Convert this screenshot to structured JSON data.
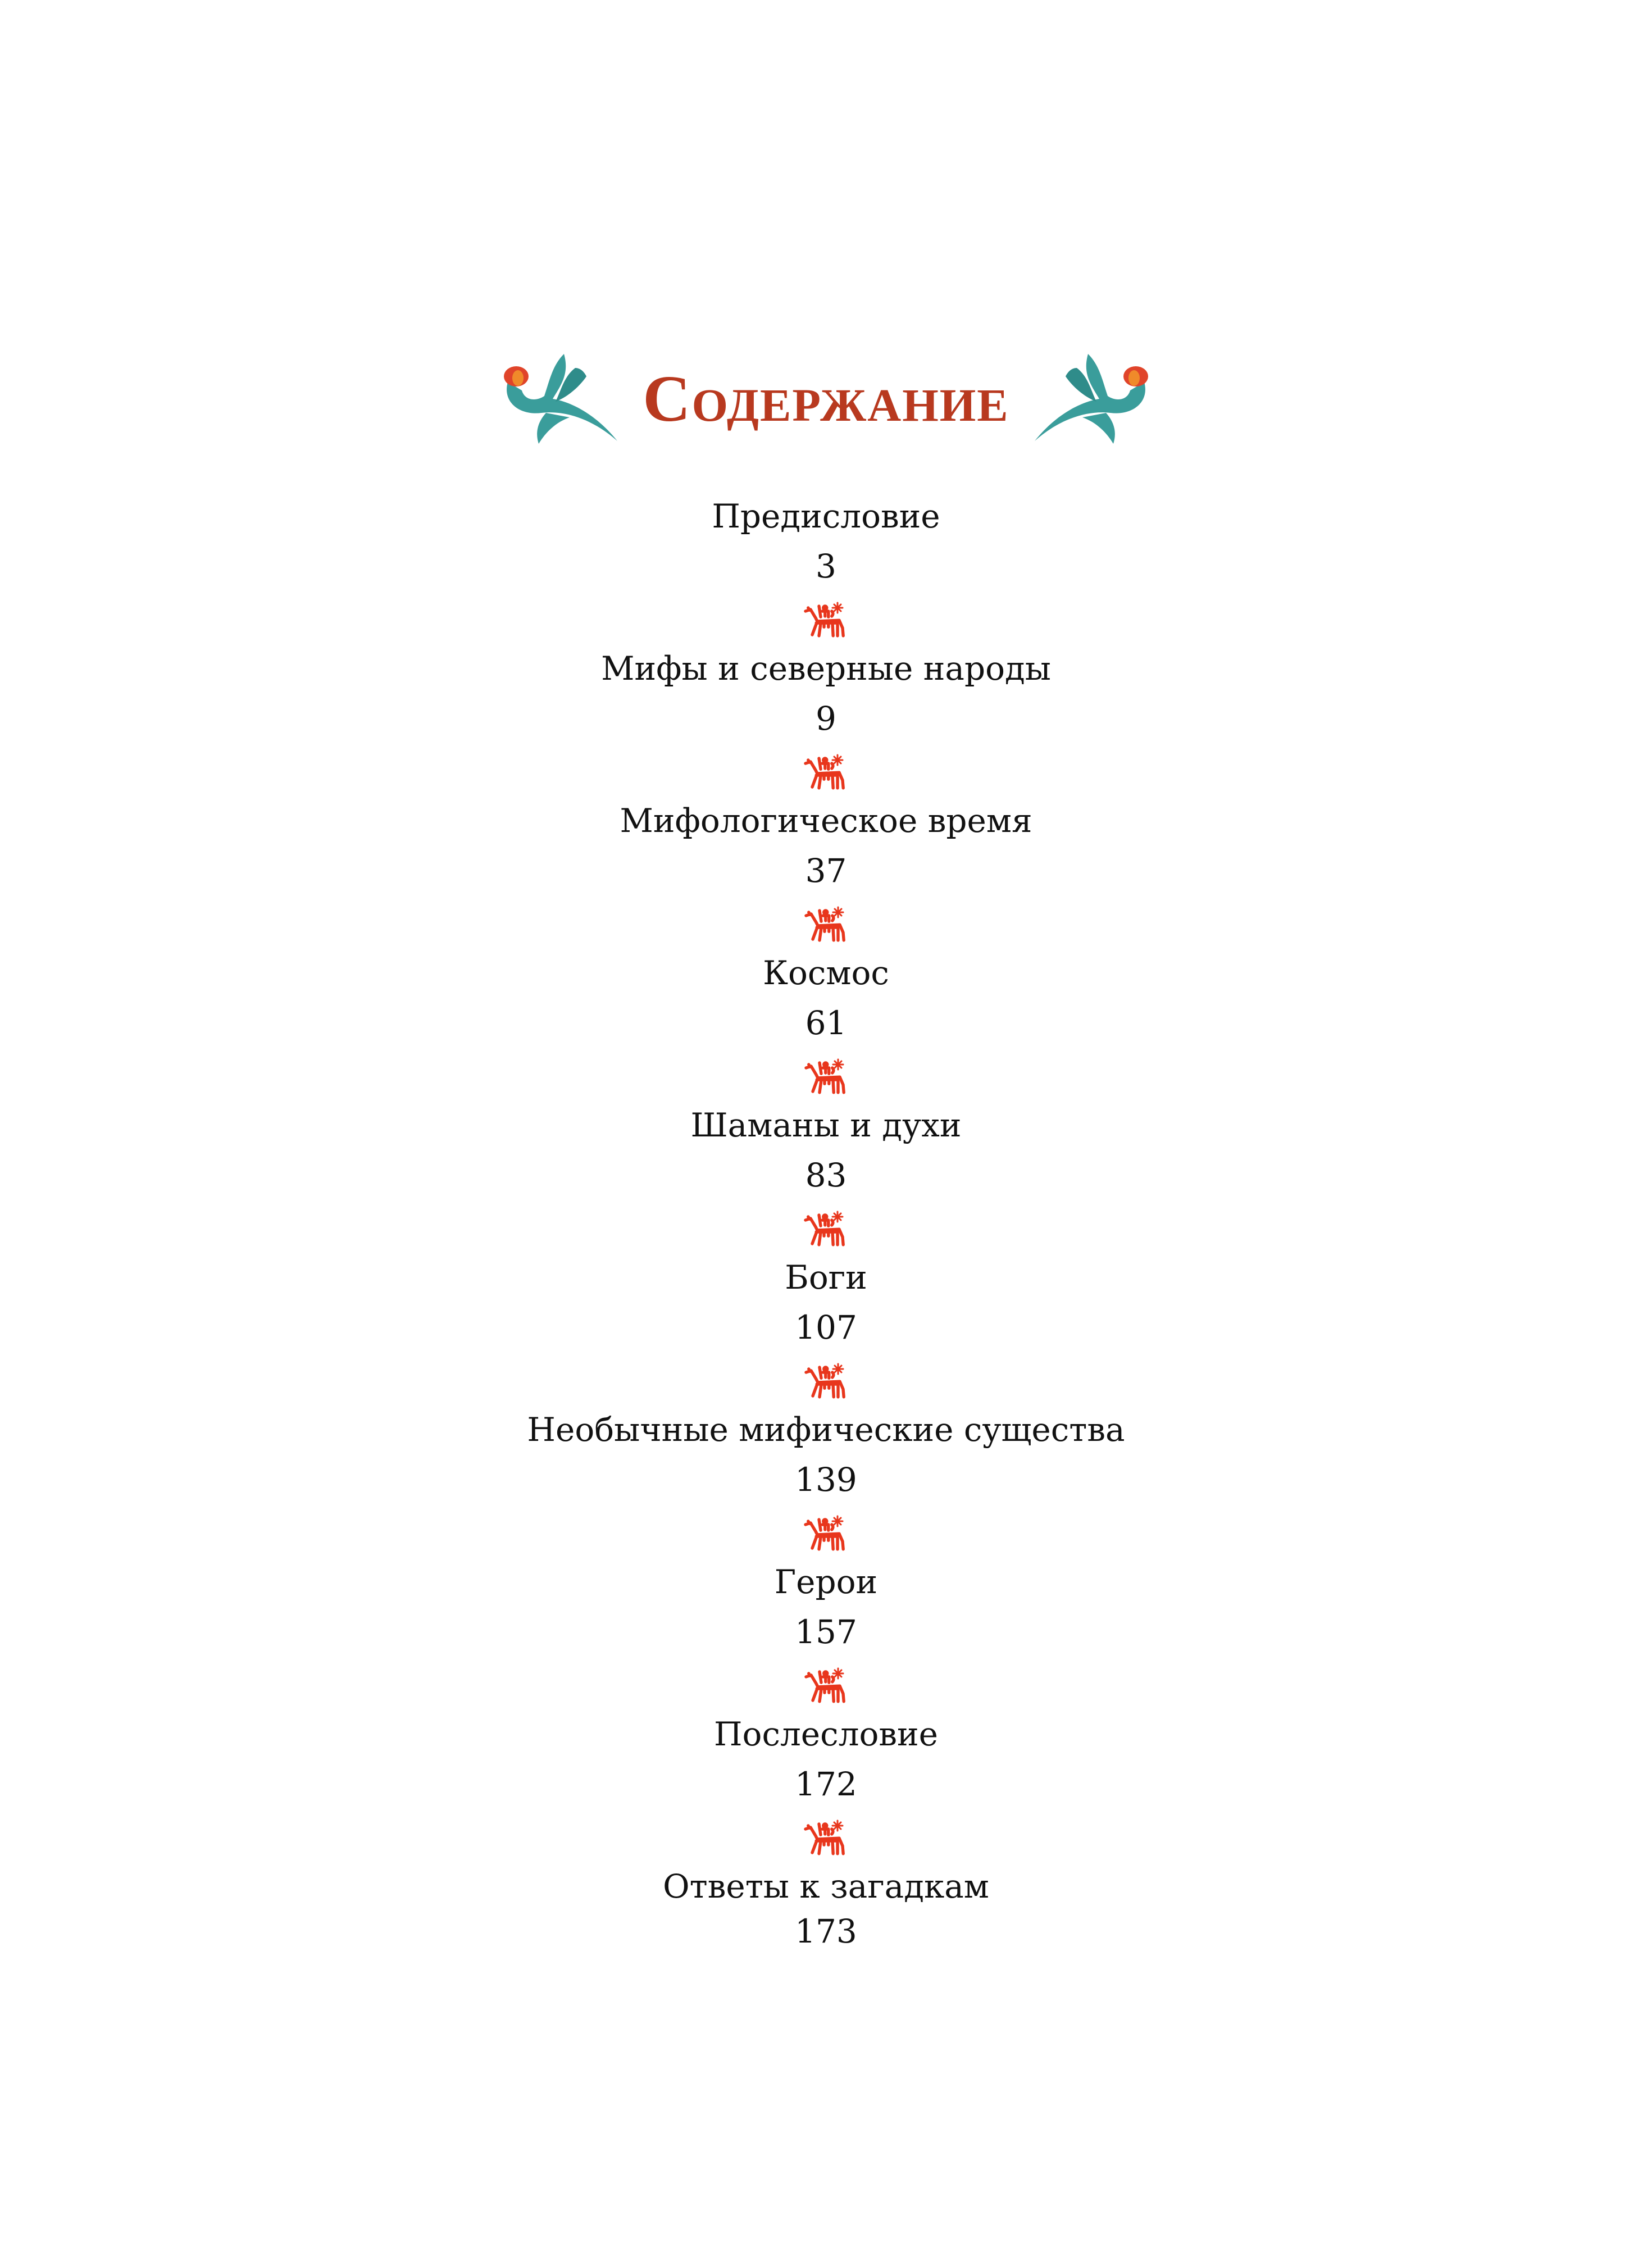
{
  "title": "Содержание",
  "colors": {
    "title": "#b8391f",
    "ornament": "#3a9d9b",
    "divider": "#e8361c",
    "text": "#111111"
  },
  "icons": {
    "header_ornament": "floral-swirl-icon",
    "divider": "horse-rider-petroglyph-icon"
  },
  "entries": [
    {
      "label": "Предисловие",
      "page": "3"
    },
    {
      "label": "Мифы и северные народы",
      "page": "9"
    },
    {
      "label": "Мифологическое время",
      "page": "37"
    },
    {
      "label": "Космос",
      "page": "61"
    },
    {
      "label": "Шаманы и духи",
      "page": "83"
    },
    {
      "label": "Боги",
      "page": "107"
    },
    {
      "label": "Необычные мифические существа",
      "page": "139"
    },
    {
      "label": "Герои",
      "page": "157"
    },
    {
      "label": "Послесловие",
      "page": "172"
    },
    {
      "label": "Ответы к загадкам",
      "page": "173"
    }
  ]
}
